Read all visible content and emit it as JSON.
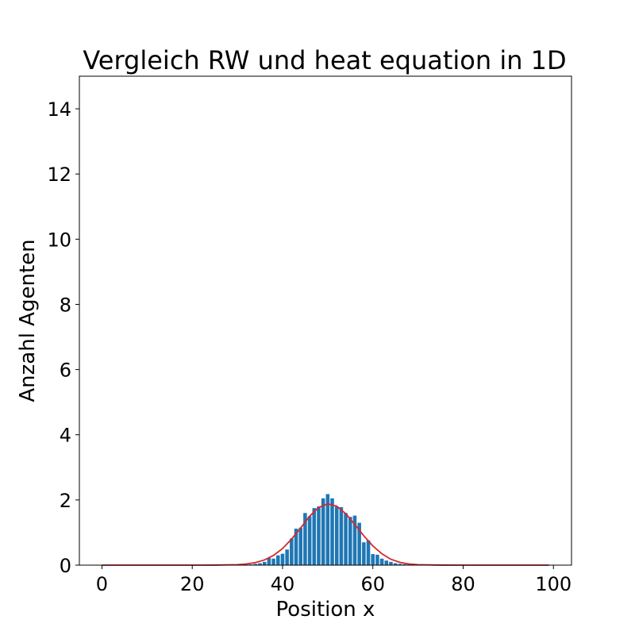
{
  "chart_data": {
    "type": "bar",
    "title": "Vergleich RW und heat equation in 1D",
    "xlabel": "Position x",
    "ylabel": "Anzahl Agenten",
    "xlim": [
      -5,
      104
    ],
    "ylim": [
      0,
      15
    ],
    "xticks": [
      0,
      20,
      40,
      60,
      80,
      100
    ],
    "yticks": [
      0,
      2,
      4,
      6,
      8,
      10,
      12,
      14
    ],
    "grid": false,
    "series": [
      {
        "type": "bar",
        "color": "#1f77b4",
        "x": [
          33,
          34,
          35,
          36,
          37,
          38,
          39,
          40,
          41,
          42,
          43,
          44,
          45,
          46,
          47,
          48,
          49,
          50,
          51,
          52,
          53,
          54,
          55,
          56,
          57,
          58,
          59,
          60,
          61,
          62,
          63,
          64,
          65,
          66,
          67,
          68
        ],
        "values": [
          0.02,
          0.04,
          0.06,
          0.1,
          0.22,
          0.2,
          0.3,
          0.35,
          0.48,
          0.82,
          1.12,
          1.15,
          1.6,
          1.5,
          1.75,
          1.8,
          2.05,
          2.18,
          2.05,
          1.8,
          1.78,
          1.6,
          1.48,
          1.52,
          1.3,
          0.7,
          0.76,
          0.34,
          0.32,
          0.2,
          0.14,
          0.1,
          0.06,
          0.04,
          0.03,
          0.02
        ]
      },
      {
        "type": "line",
        "color": "#d62728",
        "x": [
          0,
          10,
          20,
          25,
          30,
          32,
          34,
          36,
          38,
          40,
          42,
          44,
          46,
          48,
          50,
          52,
          54,
          56,
          58,
          60,
          62,
          64,
          66,
          68,
          70,
          75,
          80,
          90,
          99
        ],
        "values": [
          0,
          0,
          0,
          0.001,
          0.015,
          0.035,
          0.08,
          0.16,
          0.3,
          0.51,
          0.8,
          1.14,
          1.5,
          1.77,
          1.88,
          1.81,
          1.58,
          1.25,
          0.9,
          0.59,
          0.35,
          0.18,
          0.085,
          0.035,
          0.015,
          0.002,
          0,
          0,
          0
        ]
      }
    ]
  }
}
